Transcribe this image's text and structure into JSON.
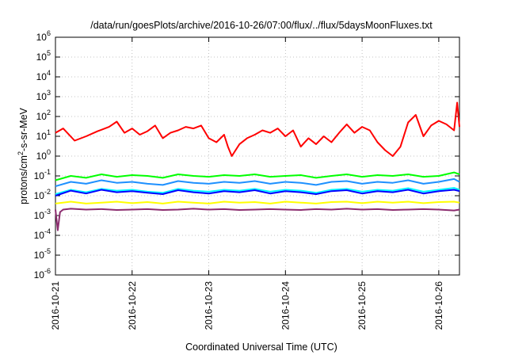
{
  "chart_data": {
    "type": "line",
    "title": "/data/run/goesPlots/archive/2016-10-26/07:00/flux/../flux/5daysMoonFluxes.txt",
    "xlabel": "Coordinated Universal Time (UTC)",
    "ylabel_main": "protons/cm",
    "ylabel_sup": "2",
    "ylabel_rest": "-s-sr-MeV",
    "scale_y": "log",
    "ylim": [
      1e-06,
      1000000.0
    ],
    "xlim": [
      0,
      5.27
    ],
    "grid": true,
    "y_ticks": [
      {
        "exp": "-6",
        "value": -6
      },
      {
        "exp": "-5",
        "value": -5
      },
      {
        "exp": "-4",
        "value": -4
      },
      {
        "exp": "-3",
        "value": -3
      },
      {
        "exp": "-2",
        "value": -2
      },
      {
        "exp": "-1",
        "value": -1
      },
      {
        "exp": "0",
        "value": 0
      },
      {
        "exp": "1",
        "value": 1
      },
      {
        "exp": "2",
        "value": 2
      },
      {
        "exp": "3",
        "value": 3
      },
      {
        "exp": "4",
        "value": 4
      },
      {
        "exp": "5",
        "value": 5
      },
      {
        "exp": "6",
        "value": 6
      }
    ],
    "y_tick_base": "10",
    "x_ticks": [
      {
        "label": "2016-10-21",
        "day": 0
      },
      {
        "label": "2016-10-22",
        "day": 1
      },
      {
        "label": "2016-10-23",
        "day": 2
      },
      {
        "label": "2016-10-24",
        "day": 3
      },
      {
        "label": "2016-10-25",
        "day": 4
      },
      {
        "label": "2016-10-26",
        "day": 5
      }
    ],
    "series": [
      {
        "color": "#ff0000",
        "day": [
          0,
          0.1,
          0.25,
          0.4,
          0.55,
          0.7,
          0.8,
          0.9,
          1.0,
          1.1,
          1.2,
          1.3,
          1.4,
          1.5,
          1.6,
          1.7,
          1.8,
          1.9,
          2.0,
          2.1,
          2.2,
          2.25,
          2.3,
          2.4,
          2.5,
          2.6,
          2.7,
          2.8,
          2.9,
          3.0,
          3.1,
          3.2,
          3.3,
          3.4,
          3.5,
          3.6,
          3.7,
          3.8,
          3.9,
          4.0,
          4.1,
          4.2,
          4.3,
          4.4,
          4.5,
          4.6,
          4.7,
          4.8,
          4.9,
          5.0,
          5.1,
          5.2,
          5.24,
          5.27
        ],
        "value": [
          15,
          25,
          6,
          10,
          18,
          30,
          55,
          15,
          25,
          12,
          18,
          35,
          8,
          15,
          20,
          30,
          25,
          35,
          8,
          5,
          12,
          3,
          1,
          4,
          8,
          12,
          20,
          15,
          25,
          10,
          20,
          3,
          8,
          4,
          10,
          5,
          15,
          40,
          15,
          30,
          20,
          5,
          2,
          1,
          3,
          50,
          120,
          10,
          35,
          60,
          40,
          20,
          500,
          30
        ]
      },
      {
        "color": "#00ff00",
        "day": [
          0,
          0.2,
          0.4,
          0.6,
          0.8,
          1.0,
          1.2,
          1.4,
          1.6,
          1.8,
          2.0,
          2.2,
          2.4,
          2.6,
          2.8,
          3.0,
          3.2,
          3.4,
          3.6,
          3.8,
          4.0,
          4.2,
          4.4,
          4.6,
          4.8,
          5.0,
          5.2,
          5.27
        ],
        "value": [
          0.06,
          0.1,
          0.08,
          0.12,
          0.09,
          0.11,
          0.1,
          0.08,
          0.12,
          0.1,
          0.09,
          0.11,
          0.1,
          0.12,
          0.09,
          0.1,
          0.11,
          0.08,
          0.1,
          0.12,
          0.09,
          0.11,
          0.1,
          0.12,
          0.09,
          0.1,
          0.15,
          0.12
        ]
      },
      {
        "color": "#1e90ff",
        "day": [
          0,
          0.2,
          0.4,
          0.6,
          0.8,
          1.0,
          1.2,
          1.4,
          1.6,
          1.8,
          2.0,
          2.2,
          2.4,
          2.6,
          2.8,
          3.0,
          3.2,
          3.4,
          3.6,
          3.8,
          4.0,
          4.2,
          4.4,
          4.6,
          4.8,
          5.0,
          5.2,
          5.27
        ],
        "value": [
          0.03,
          0.05,
          0.04,
          0.06,
          0.045,
          0.05,
          0.04,
          0.035,
          0.055,
          0.045,
          0.04,
          0.05,
          0.045,
          0.055,
          0.04,
          0.05,
          0.045,
          0.035,
          0.05,
          0.055,
          0.04,
          0.05,
          0.045,
          0.06,
          0.04,
          0.05,
          0.07,
          0.05
        ]
      },
      {
        "color": "#00ffff",
        "day": [
          0,
          0.2,
          0.4,
          0.6,
          0.8,
          1.0,
          1.2,
          1.4,
          1.6,
          1.8,
          2.0,
          2.2,
          2.4,
          2.6,
          2.8,
          3.0,
          3.2,
          3.4,
          3.6,
          3.8,
          4.0,
          4.2,
          4.4,
          4.6,
          4.8,
          5.0,
          5.2,
          5.27
        ],
        "value": [
          0.012,
          0.02,
          0.015,
          0.022,
          0.018,
          0.02,
          0.016,
          0.014,
          0.022,
          0.018,
          0.016,
          0.02,
          0.018,
          0.022,
          0.016,
          0.02,
          0.018,
          0.014,
          0.02,
          0.022,
          0.016,
          0.02,
          0.018,
          0.024,
          0.016,
          0.02,
          0.025,
          0.02
        ]
      },
      {
        "color": "#0000ff",
        "day": [
          0,
          0.2,
          0.4,
          0.6,
          0.8,
          1.0,
          1.2,
          1.4,
          1.6,
          1.8,
          2.0,
          2.2,
          2.4,
          2.6,
          2.8,
          3.0,
          3.2,
          3.4,
          3.6,
          3.8,
          4.0,
          4.2,
          4.4,
          4.6,
          4.8,
          5.0,
          5.2,
          5.27
        ],
        "value": [
          0.01,
          0.018,
          0.013,
          0.02,
          0.015,
          0.017,
          0.014,
          0.012,
          0.019,
          0.015,
          0.013,
          0.017,
          0.015,
          0.019,
          0.013,
          0.017,
          0.015,
          0.012,
          0.017,
          0.019,
          0.013,
          0.017,
          0.015,
          0.02,
          0.013,
          0.017,
          0.02,
          0.017
        ]
      },
      {
        "color": "#ffff00",
        "day": [
          0,
          0.2,
          0.4,
          0.6,
          0.8,
          1.0,
          1.2,
          1.4,
          1.6,
          1.8,
          2.0,
          2.2,
          2.4,
          2.6,
          2.8,
          3.0,
          3.2,
          3.4,
          3.6,
          3.8,
          4.0,
          4.2,
          4.4,
          4.6,
          4.8,
          5.0,
          5.2,
          5.27
        ],
        "value": [
          0.004,
          0.005,
          0.004,
          0.0045,
          0.005,
          0.0042,
          0.0048,
          0.004,
          0.005,
          0.0045,
          0.004,
          0.005,
          0.0045,
          0.0048,
          0.004,
          0.005,
          0.0045,
          0.004,
          0.0048,
          0.005,
          0.0042,
          0.005,
          0.0045,
          0.005,
          0.0042,
          0.0048,
          0.005,
          0.0045
        ]
      },
      {
        "color": "#8b2c6e",
        "day": [
          0,
          0.03,
          0.06,
          0.1,
          0.2,
          0.4,
          0.6,
          0.8,
          1.0,
          1.2,
          1.4,
          1.6,
          1.8,
          2.0,
          2.2,
          2.4,
          2.6,
          2.8,
          3.0,
          3.2,
          3.4,
          3.6,
          3.8,
          4.0,
          4.2,
          4.4,
          4.6,
          4.8,
          5.0,
          5.2,
          5.27
        ],
        "value": [
          0.002,
          0.00018,
          0.0015,
          0.002,
          0.0022,
          0.002,
          0.0021,
          0.0019,
          0.002,
          0.0021,
          0.0019,
          0.002,
          0.0022,
          0.002,
          0.0021,
          0.0019,
          0.002,
          0.0021,
          0.002,
          0.0019,
          0.0021,
          0.002,
          0.0022,
          0.002,
          0.0021,
          0.0019,
          0.002,
          0.0021,
          0.002,
          0.0018,
          0.002
        ]
      }
    ]
  }
}
